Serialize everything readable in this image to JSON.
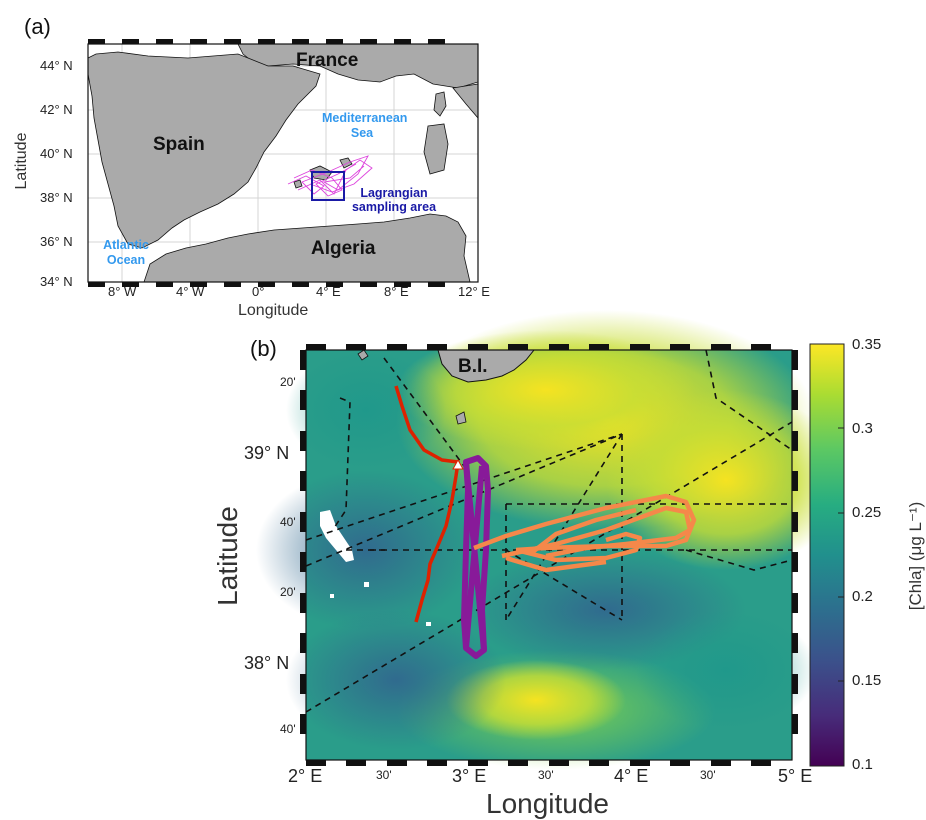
{
  "panel_a": {
    "label": "(a)",
    "xlabel": "Longitude",
    "ylabel": "Latitude",
    "lon_ticks": [
      "8° W",
      "4° W",
      "0°",
      "4° E",
      "8° E",
      "12° E"
    ],
    "lat_ticks": [
      "44° N",
      "42° N",
      "40° N",
      "38° N",
      "36° N",
      "34° N"
    ],
    "lon_range": [
      -11,
      12
    ],
    "lat_range": [
      34,
      45
    ],
    "labels": {
      "france": "France",
      "spain": "Spain",
      "algeria": "Algeria",
      "med_line1": "Mediterranean",
      "med_line2": "Sea",
      "atl_line1": "Atlantic",
      "atl_line2": "Ocean",
      "box_line1": "Lagrangian",
      "box_line2": "sampling area"
    },
    "colors": {
      "land": "#aaaaaa",
      "sea": "#ffffff",
      "sea_label": "#3399ee",
      "box": "#1a1aa6",
      "tracks": "#dd44dd"
    }
  },
  "panel_b": {
    "label": "(b)",
    "xlabel": "Longitude",
    "ylabel": "Latitude",
    "lon_ticks": [
      {
        "text": "2° E",
        "major": true
      },
      {
        "text": "30'",
        "major": false
      },
      {
        "text": "3° E",
        "major": true
      },
      {
        "text": "30'",
        "major": false
      },
      {
        "text": "4° E",
        "major": true
      },
      {
        "text": "30'",
        "major": false
      },
      {
        "text": "5° E",
        "major": true
      }
    ],
    "lat_ticks": [
      {
        "text": "20'",
        "major": false
      },
      {
        "text": "39° N",
        "major": true
      },
      {
        "text": "40'",
        "major": false
      },
      {
        "text": "20'",
        "major": false
      },
      {
        "text": "38° N",
        "major": true
      },
      {
        "text": "40'",
        "major": false
      }
    ],
    "island_label": "B.I.",
    "colorbar": {
      "label": "[Chla] (μg L⁻¹)",
      "ticks": [
        "0.35",
        "0.3",
        "0.25",
        "0.2",
        "0.15",
        "0.1"
      ],
      "range": [
        0.1,
        0.35
      ],
      "colormap": "viridis"
    },
    "colors": {
      "red_track": "#dd2200",
      "purple_track": "#881a99",
      "orange_track": "#f5884a",
      "lines": "#111111"
    }
  }
}
